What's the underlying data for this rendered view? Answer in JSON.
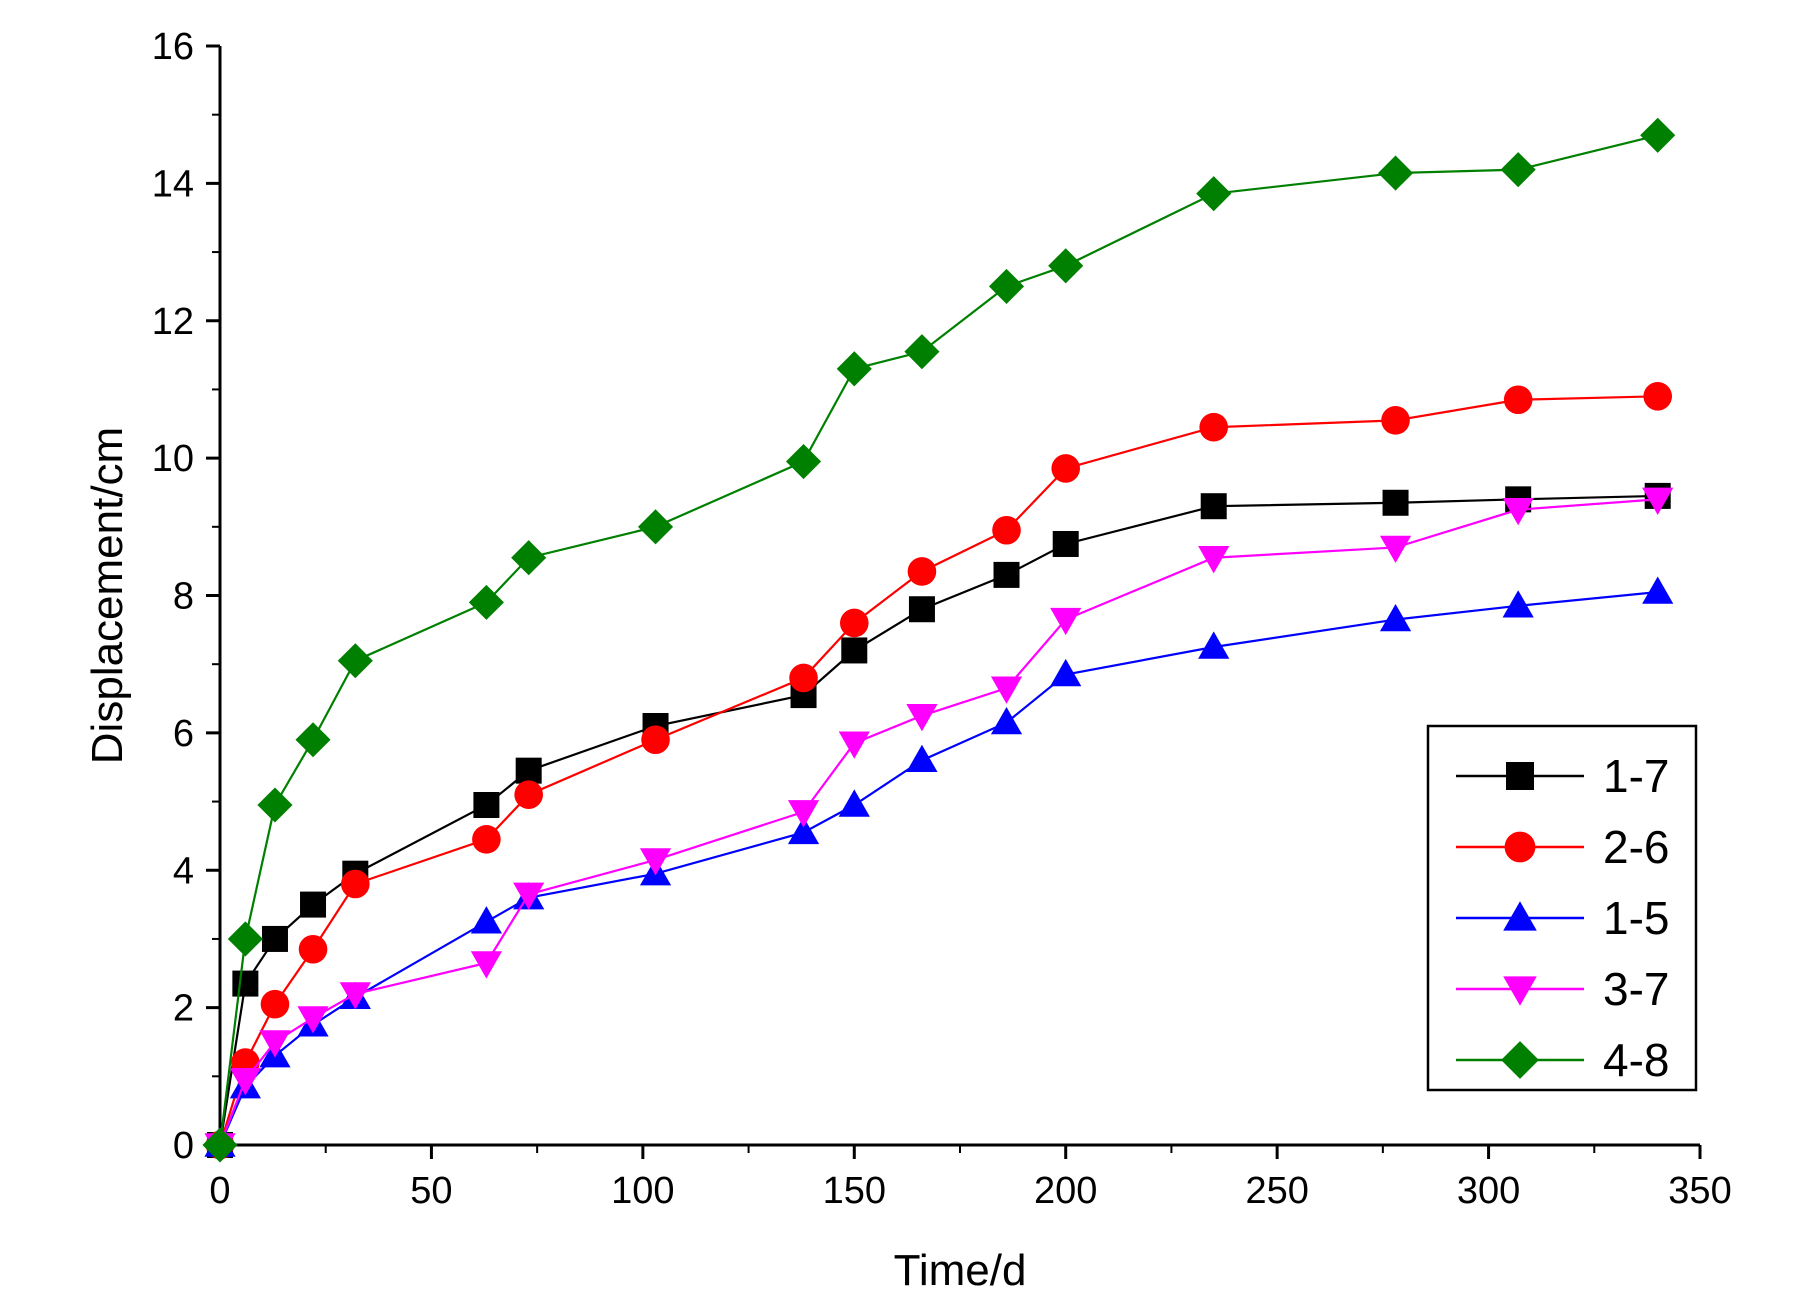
{
  "chart_data": {
    "type": "line",
    "title": "",
    "xlabel": "Time/d",
    "ylabel": "Displacement/cm",
    "xlim": [
      0,
      350
    ],
    "ylim": [
      0,
      16
    ],
    "xticks": [
      0,
      50,
      100,
      150,
      200,
      250,
      300,
      350
    ],
    "yticks": [
      0,
      2,
      4,
      6,
      8,
      10,
      12,
      14,
      16
    ],
    "grid": false,
    "legend_position": "middle-right",
    "x": [
      0,
      6,
      13,
      22,
      32,
      63,
      73,
      103,
      138,
      150,
      166,
      186,
      200,
      235,
      278,
      307,
      340
    ],
    "series": [
      {
        "name": "1-7",
        "color": "#000000",
        "marker": "square",
        "values": [
          0,
          2.35,
          3.0,
          3.5,
          3.95,
          4.95,
          5.45,
          6.1,
          6.55,
          7.2,
          7.8,
          8.3,
          8.75,
          9.3,
          9.35,
          9.4,
          9.45
        ]
      },
      {
        "name": "2-6",
        "color": "#ff0000",
        "marker": "circle",
        "values": [
          0,
          1.2,
          2.05,
          2.85,
          3.8,
          4.45,
          5.1,
          5.9,
          6.8,
          7.6,
          8.35,
          8.95,
          9.85,
          10.45,
          10.55,
          10.85,
          10.9
        ]
      },
      {
        "name": "1-5",
        "color": "#0000ff",
        "marker": "triangle-up",
        "values": [
          0,
          0.85,
          1.3,
          1.75,
          2.15,
          3.25,
          3.6,
          3.95,
          4.55,
          4.95,
          5.6,
          6.15,
          6.85,
          7.25,
          7.65,
          7.85,
          8.05
        ]
      },
      {
        "name": "3-7",
        "color": "#ff00ff",
        "marker": "triangle-down",
        "values": [
          0,
          0.95,
          1.5,
          1.85,
          2.2,
          2.65,
          3.65,
          4.15,
          4.85,
          5.85,
          6.25,
          6.65,
          7.65,
          8.55,
          8.7,
          9.25,
          9.4
        ]
      },
      {
        "name": "4-8",
        "color": "#008000",
        "marker": "diamond",
        "values": [
          0,
          3.0,
          4.95,
          5.9,
          7.05,
          7.9,
          8.55,
          9.0,
          9.95,
          11.3,
          11.55,
          12.5,
          12.8,
          13.85,
          14.15,
          14.2,
          14.7
        ]
      }
    ]
  }
}
